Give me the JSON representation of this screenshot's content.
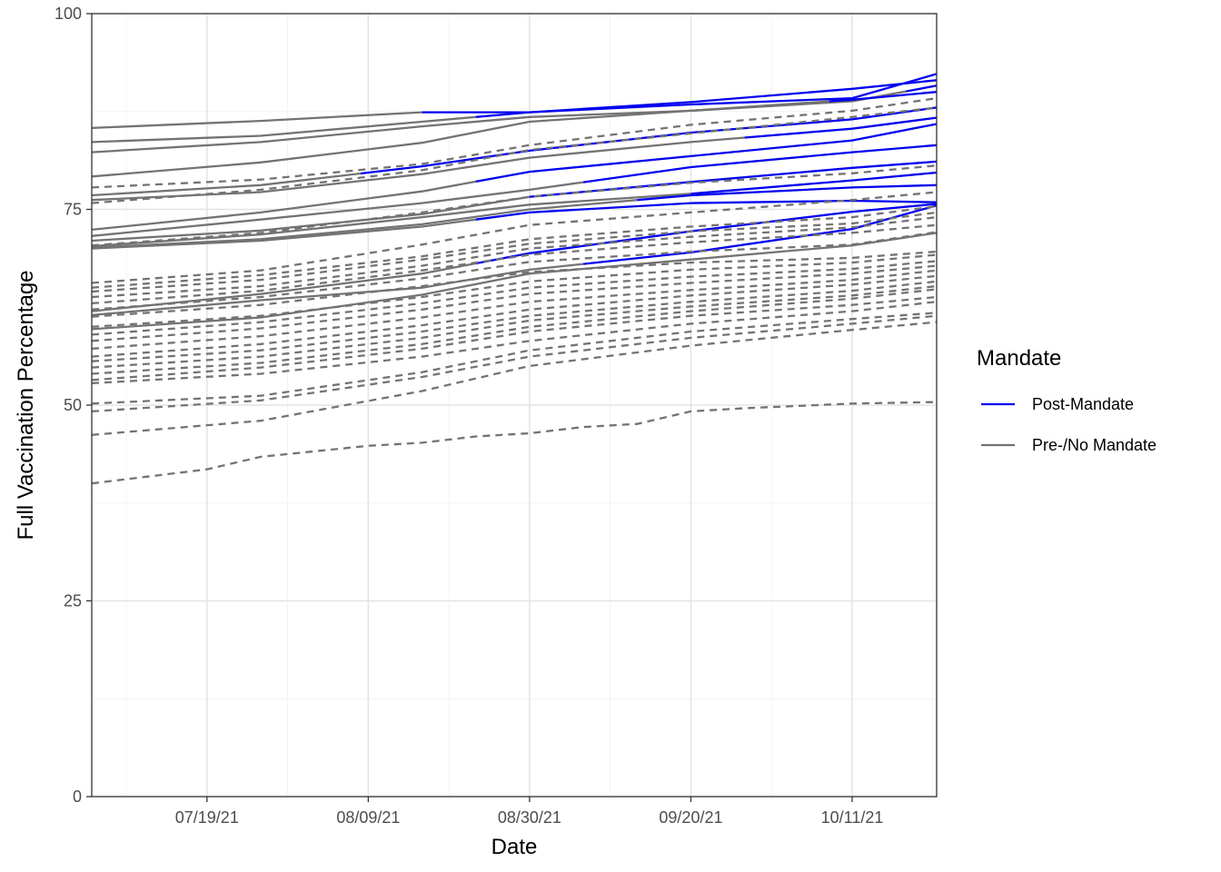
{
  "chart_data": {
    "type": "line",
    "title": "",
    "xlabel": "Date",
    "ylabel": "Full Vaccination Percentage",
    "ylim": [
      0,
      100
    ],
    "xlim": [
      "2021-07-04",
      "2021-10-22"
    ],
    "y_ticks": [
      "0",
      "25",
      "50",
      "75",
      "100"
    ],
    "x_ticks": [
      {
        "date": "2021-07-19",
        "label": "07/19/21"
      },
      {
        "date": "2021-08-09",
        "label": "08/09/21"
      },
      {
        "date": "2021-08-30",
        "label": "08/30/21"
      },
      {
        "date": "2021-09-20",
        "label": "09/20/21"
      },
      {
        "date": "2021-10-11",
        "label": "10/11/21"
      }
    ],
    "grid": true,
    "legend": {
      "title": "Mandate",
      "position": "right",
      "items": [
        {
          "label": "Post-Mandate",
          "color": "#0000ee"
        },
        {
          "label": "Pre-/No Mandate",
          "color": "#737373"
        }
      ]
    },
    "colors": {
      "post_mandate": "#0000ee",
      "pre_mandate": "#737373"
    },
    "series": [
      {
        "linetype": "solid",
        "x": [
          "2021-07-04",
          "2021-07-26",
          "2021-08-16",
          "2021-08-30",
          "2021-09-20",
          "2021-10-11",
          "2021-10-22"
        ],
        "values": [
          85.4,
          86.3,
          87.4,
          87.4,
          88.7,
          90.4,
          91.5
        ],
        "post_from": "2021-08-16"
      },
      {
        "linetype": "solid",
        "x": [
          "2021-07-04",
          "2021-07-26",
          "2021-08-16",
          "2021-08-30",
          "2021-09-20",
          "2021-10-11",
          "2021-10-22"
        ],
        "values": [
          83.6,
          84.4,
          86.2,
          87.4,
          88.4,
          89.2,
          92.3
        ],
        "post_from": "2021-08-23"
      },
      {
        "linetype": "solid",
        "x": [
          "2021-07-04",
          "2021-07-26",
          "2021-08-16",
          "2021-08-30",
          "2021-09-20",
          "2021-10-11",
          "2021-10-22"
        ],
        "values": [
          82.3,
          83.6,
          85.6,
          86.8,
          87.6,
          88.8,
          90.8
        ],
        "post_from": "2021-10-18"
      },
      {
        "linetype": "solid",
        "x": [
          "2021-07-04",
          "2021-07-26",
          "2021-08-16",
          "2021-08-30",
          "2021-09-20",
          "2021-10-11",
          "2021-10-22"
        ],
        "values": [
          79.2,
          81.0,
          83.5,
          86.2,
          87.6,
          89.0,
          90.0
        ],
        "post_from": "2021-10-08"
      },
      {
        "linetype": "solid",
        "x": [
          "2021-07-04",
          "2021-07-26",
          "2021-08-16",
          "2021-08-30",
          "2021-09-20",
          "2021-10-11",
          "2021-10-22"
        ],
        "values": [
          76.8,
          78.1,
          80.5,
          82.5,
          84.8,
          86.5,
          88.0
        ],
        "post_from": "2021-08-08"
      },
      {
        "linetype": "solid",
        "x": [
          "2021-07-04",
          "2021-07-26",
          "2021-08-16",
          "2021-08-30",
          "2021-09-20",
          "2021-10-11",
          "2021-10-22"
        ],
        "values": [
          76.2,
          77.2,
          79.5,
          81.6,
          83.6,
          85.3,
          86.7
        ],
        "post_from": "2021-09-27"
      },
      {
        "linetype": "solid",
        "x": [
          "2021-07-04",
          "2021-07-26",
          "2021-08-16",
          "2021-08-30",
          "2021-09-20",
          "2021-10-11",
          "2021-10-22"
        ],
        "values": [
          72.4,
          74.6,
          77.3,
          79.8,
          81.8,
          83.8,
          85.9
        ],
        "post_from": "2021-08-23"
      },
      {
        "linetype": "solid",
        "x": [
          "2021-07-04",
          "2021-07-26",
          "2021-08-16",
          "2021-08-30",
          "2021-09-20",
          "2021-10-11",
          "2021-10-22"
        ],
        "values": [
          71.6,
          73.7,
          75.8,
          77.5,
          80.4,
          82.3,
          83.2
        ],
        "post_from": "2021-09-06"
      },
      {
        "linetype": "solid",
        "x": [
          "2021-07-04",
          "2021-07-26",
          "2021-08-16",
          "2021-08-30",
          "2021-09-20",
          "2021-10-11",
          "2021-10-22"
        ],
        "values": [
          71.0,
          72.3,
          74.4,
          76.6,
          78.5,
          80.3,
          81.1
        ],
        "post_from": "2021-08-30"
      },
      {
        "linetype": "solid",
        "x": [
          "2021-07-04",
          "2021-07-26",
          "2021-08-16",
          "2021-08-30",
          "2021-09-20",
          "2021-10-11",
          "2021-10-22"
        ],
        "values": [
          70.3,
          71.8,
          74.0,
          75.6,
          77.0,
          78.7,
          79.7
        ],
        "post_from": "2021-09-20"
      },
      {
        "linetype": "solid",
        "x": [
          "2021-07-04",
          "2021-07-26",
          "2021-08-16",
          "2021-08-30",
          "2021-09-20",
          "2021-10-11",
          "2021-10-22"
        ],
        "values": [
          70.1,
          71.2,
          73.1,
          75.0,
          76.8,
          77.8,
          78.1
        ],
        "post_from": "2021-09-13"
      },
      {
        "linetype": "solid",
        "x": [
          "2021-07-04",
          "2021-07-26",
          "2021-08-16",
          "2021-08-30",
          "2021-09-20",
          "2021-10-11",
          "2021-10-22"
        ],
        "values": [
          70.0,
          71.0,
          72.8,
          74.6,
          75.8,
          76.1,
          75.9
        ],
        "post_from": "2021-08-23"
      },
      {
        "linetype": "solid",
        "x": [
          "2021-07-04",
          "2021-07-26",
          "2021-08-16",
          "2021-08-30",
          "2021-09-20",
          "2021-10-11",
          "2021-10-22"
        ],
        "values": [
          62.0,
          64.2,
          66.8,
          69.4,
          72.2,
          74.7,
          75.7
        ],
        "post_from": "2021-08-23"
      },
      {
        "linetype": "solid",
        "x": [
          "2021-07-04",
          "2021-07-26",
          "2021-08-16",
          "2021-08-30",
          "2021-09-20",
          "2021-10-11",
          "2021-10-22"
        ],
        "values": [
          61.5,
          63.4,
          65.0,
          67.3,
          69.5,
          72.5,
          75.5
        ],
        "post_from": "2021-09-06"
      },
      {
        "linetype": "solid",
        "x": [
          "2021-07-04",
          "2021-07-26",
          "2021-08-16",
          "2021-08-30",
          "2021-09-20",
          "2021-10-11",
          "2021-10-22"
        ],
        "values": [
          59.7,
          61.2,
          64.1,
          66.8,
          68.6,
          70.4,
          72.0
        ],
        "post_from": ""
      },
      {
        "linetype": "dashed",
        "x": [
          "2021-07-04",
          "2021-07-26",
          "2021-08-16",
          "2021-08-30",
          "2021-09-20",
          "2021-10-11",
          "2021-10-22"
        ],
        "values": [
          77.8,
          78.8,
          80.8,
          83.2,
          85.8,
          87.6,
          89.2
        ],
        "post_from": ""
      },
      {
        "linetype": "dashed",
        "x": [
          "2021-07-04",
          "2021-07-26",
          "2021-08-16",
          "2021-08-30",
          "2021-09-20",
          "2021-10-11",
          "2021-10-22"
        ],
        "values": [
          75.8,
          77.5,
          80.0,
          82.6,
          84.7,
          86.8,
          88.0
        ],
        "post_from": ""
      },
      {
        "linetype": "dashed",
        "x": [
          "2021-07-04",
          "2021-07-26",
          "2021-08-16",
          "2021-08-30",
          "2021-09-20",
          "2021-10-11",
          "2021-10-22"
        ],
        "values": [
          70.4,
          72.0,
          74.6,
          76.6,
          78.4,
          79.6,
          80.6
        ],
        "post_from": ""
      },
      {
        "linetype": "dashed",
        "x": [
          "2021-07-04",
          "2021-07-26",
          "2021-08-16",
          "2021-08-30",
          "2021-09-20",
          "2021-10-11",
          "2021-10-22"
        ],
        "values": [
          65.6,
          67.2,
          70.5,
          73.0,
          74.6,
          76.2,
          77.2
        ],
        "post_from": ""
      },
      {
        "linetype": "dashed",
        "x": [
          "2021-07-04",
          "2021-07-26",
          "2021-08-16",
          "2021-08-30",
          "2021-09-20",
          "2021-10-11",
          "2021-10-22"
        ],
        "values": [
          65.0,
          66.6,
          69.0,
          71.2,
          72.8,
          74.0,
          75.4
        ],
        "post_from": ""
      },
      {
        "linetype": "dashed",
        "x": [
          "2021-07-04",
          "2021-07-26",
          "2021-08-16",
          "2021-08-30",
          "2021-09-20",
          "2021-10-11",
          "2021-10-22"
        ],
        "values": [
          64.5,
          66.0,
          68.6,
          70.6,
          72.2,
          73.2,
          74.6
        ],
        "post_from": ""
      },
      {
        "linetype": "dashed",
        "x": [
          "2021-07-04",
          "2021-07-26",
          "2021-08-16",
          "2021-08-30",
          "2021-09-20",
          "2021-10-11",
          "2021-10-22"
        ],
        "values": [
          63.8,
          65.2,
          67.8,
          70.0,
          71.5,
          72.7,
          74.0
        ],
        "post_from": ""
      },
      {
        "linetype": "dashed",
        "x": [
          "2021-07-04",
          "2021-07-26",
          "2021-08-16",
          "2021-08-30",
          "2021-09-20",
          "2021-10-11",
          "2021-10-22"
        ],
        "values": [
          63.0,
          64.6,
          67.2,
          69.2,
          70.8,
          72.0,
          73.0
        ],
        "post_from": ""
      },
      {
        "linetype": "dashed",
        "x": [
          "2021-07-04",
          "2021-07-26",
          "2021-08-16",
          "2021-08-30",
          "2021-09-20",
          "2021-10-11",
          "2021-10-22"
        ],
        "values": [
          62.2,
          63.8,
          66.2,
          68.3,
          69.6,
          70.5,
          72.1
        ],
        "post_from": ""
      },
      {
        "linetype": "dashed",
        "x": [
          "2021-07-04",
          "2021-07-26",
          "2021-08-16",
          "2021-08-30",
          "2021-09-20",
          "2021-10-11",
          "2021-10-22"
        ],
        "values": [
          61.3,
          62.8,
          65.2,
          67.0,
          68.2,
          68.8,
          69.6
        ],
        "post_from": ""
      },
      {
        "linetype": "dashed",
        "x": [
          "2021-07-04",
          "2021-07-26",
          "2021-08-16",
          "2021-08-30",
          "2021-09-20",
          "2021-10-11",
          "2021-10-22"
        ],
        "values": [
          60.0,
          61.4,
          63.8,
          65.8,
          67.3,
          68.2,
          69.2
        ],
        "post_from": ""
      },
      {
        "linetype": "dashed",
        "x": [
          "2021-07-04",
          "2021-07-26",
          "2021-08-16",
          "2021-08-30",
          "2021-09-20",
          "2021-10-11",
          "2021-10-22"
        ],
        "values": [
          59.0,
          60.6,
          63.0,
          65.0,
          66.4,
          67.4,
          68.4
        ],
        "post_from": ""
      },
      {
        "linetype": "dashed",
        "x": [
          "2021-07-04",
          "2021-07-26",
          "2021-08-16",
          "2021-08-30",
          "2021-09-20",
          "2021-10-11",
          "2021-10-22"
        ],
        "values": [
          58.2,
          59.8,
          62.2,
          64.2,
          65.6,
          66.8,
          67.8
        ],
        "post_from": ""
      },
      {
        "linetype": "dashed",
        "x": [
          "2021-07-04",
          "2021-07-26",
          "2021-08-16",
          "2021-08-30",
          "2021-09-20",
          "2021-10-11",
          "2021-10-22"
        ],
        "values": [
          57.2,
          58.8,
          61.2,
          63.2,
          64.7,
          66.0,
          67.2
        ],
        "post_from": ""
      },
      {
        "linetype": "dashed",
        "x": [
          "2021-07-04",
          "2021-07-26",
          "2021-08-16",
          "2021-08-30",
          "2021-09-20",
          "2021-10-11",
          "2021-10-22"
        ],
        "values": [
          56.2,
          57.8,
          60.2,
          62.2,
          64.0,
          65.4,
          66.5
        ],
        "post_from": ""
      },
      {
        "linetype": "dashed",
        "x": [
          "2021-07-04",
          "2021-07-26",
          "2021-08-16",
          "2021-08-30",
          "2021-09-20",
          "2021-10-11",
          "2021-10-22"
        ],
        "values": [
          55.6,
          57.0,
          59.4,
          61.4,
          63.2,
          64.6,
          65.8
        ],
        "post_from": ""
      },
      {
        "linetype": "dashed",
        "x": [
          "2021-07-04",
          "2021-07-26",
          "2021-08-16",
          "2021-08-30",
          "2021-09-20",
          "2021-10-11",
          "2021-10-22"
        ],
        "values": [
          54.8,
          56.2,
          58.6,
          60.8,
          62.6,
          64.0,
          65.2
        ],
        "post_from": ""
      },
      {
        "linetype": "dashed",
        "x": [
          "2021-07-04",
          "2021-07-26",
          "2021-08-16",
          "2021-08-30",
          "2021-09-20",
          "2021-10-11",
          "2021-10-22"
        ],
        "values": [
          54.0,
          55.4,
          57.8,
          60.0,
          62.0,
          63.6,
          64.8
        ],
        "post_from": ""
      },
      {
        "linetype": "dashed",
        "x": [
          "2021-07-04",
          "2021-07-26",
          "2021-08-16",
          "2021-08-30",
          "2021-09-20",
          "2021-10-11",
          "2021-10-22"
        ],
        "values": [
          53.2,
          54.8,
          57.2,
          59.4,
          61.4,
          62.8,
          63.8
        ],
        "post_from": ""
      },
      {
        "linetype": "dashed",
        "x": [
          "2021-07-04",
          "2021-07-26",
          "2021-08-16",
          "2021-08-30",
          "2021-09-20",
          "2021-10-11",
          "2021-10-22"
        ],
        "values": [
          52.8,
          54.0,
          56.2,
          58.2,
          60.4,
          62.0,
          63.2
        ],
        "post_from": ""
      },
      {
        "linetype": "dashed",
        "x": [
          "2021-07-04",
          "2021-07-26",
          "2021-08-16",
          "2021-08-30",
          "2021-09-20",
          "2021-10-11",
          "2021-10-22"
        ],
        "values": [
          50.2,
          51.2,
          54.2,
          57.0,
          59.4,
          61.0,
          61.8
        ],
        "post_from": ""
      },
      {
        "linetype": "dashed",
        "x": [
          "2021-07-04",
          "2021-07-26",
          "2021-08-16",
          "2021-08-30",
          "2021-09-20",
          "2021-10-11",
          "2021-10-22"
        ],
        "values": [
          49.2,
          50.6,
          53.6,
          56.2,
          58.6,
          60.4,
          61.4
        ],
        "post_from": ""
      },
      {
        "linetype": "dashed",
        "x": [
          "2021-07-04",
          "2021-07-26",
          "2021-08-16",
          "2021-08-30",
          "2021-09-20",
          "2021-10-11",
          "2021-10-22"
        ],
        "values": [
          46.2,
          48.0,
          51.8,
          55.0,
          57.6,
          59.6,
          60.6
        ],
        "post_from": ""
      },
      {
        "linetype": "dashed",
        "x": [
          "2021-07-04",
          "2021-07-19",
          "2021-07-26",
          "2021-08-09",
          "2021-08-16",
          "2021-08-23",
          "2021-08-30",
          "2021-09-06",
          "2021-09-13",
          "2021-09-20",
          "2021-09-27",
          "2021-10-04",
          "2021-10-11",
          "2021-10-22"
        ],
        "values": [
          40.0,
          41.8,
          43.4,
          44.8,
          45.2,
          46.0,
          46.4,
          47.2,
          47.6,
          49.2,
          49.6,
          49.9,
          50.2,
          50.4
        ],
        "post_from": ""
      }
    ]
  }
}
